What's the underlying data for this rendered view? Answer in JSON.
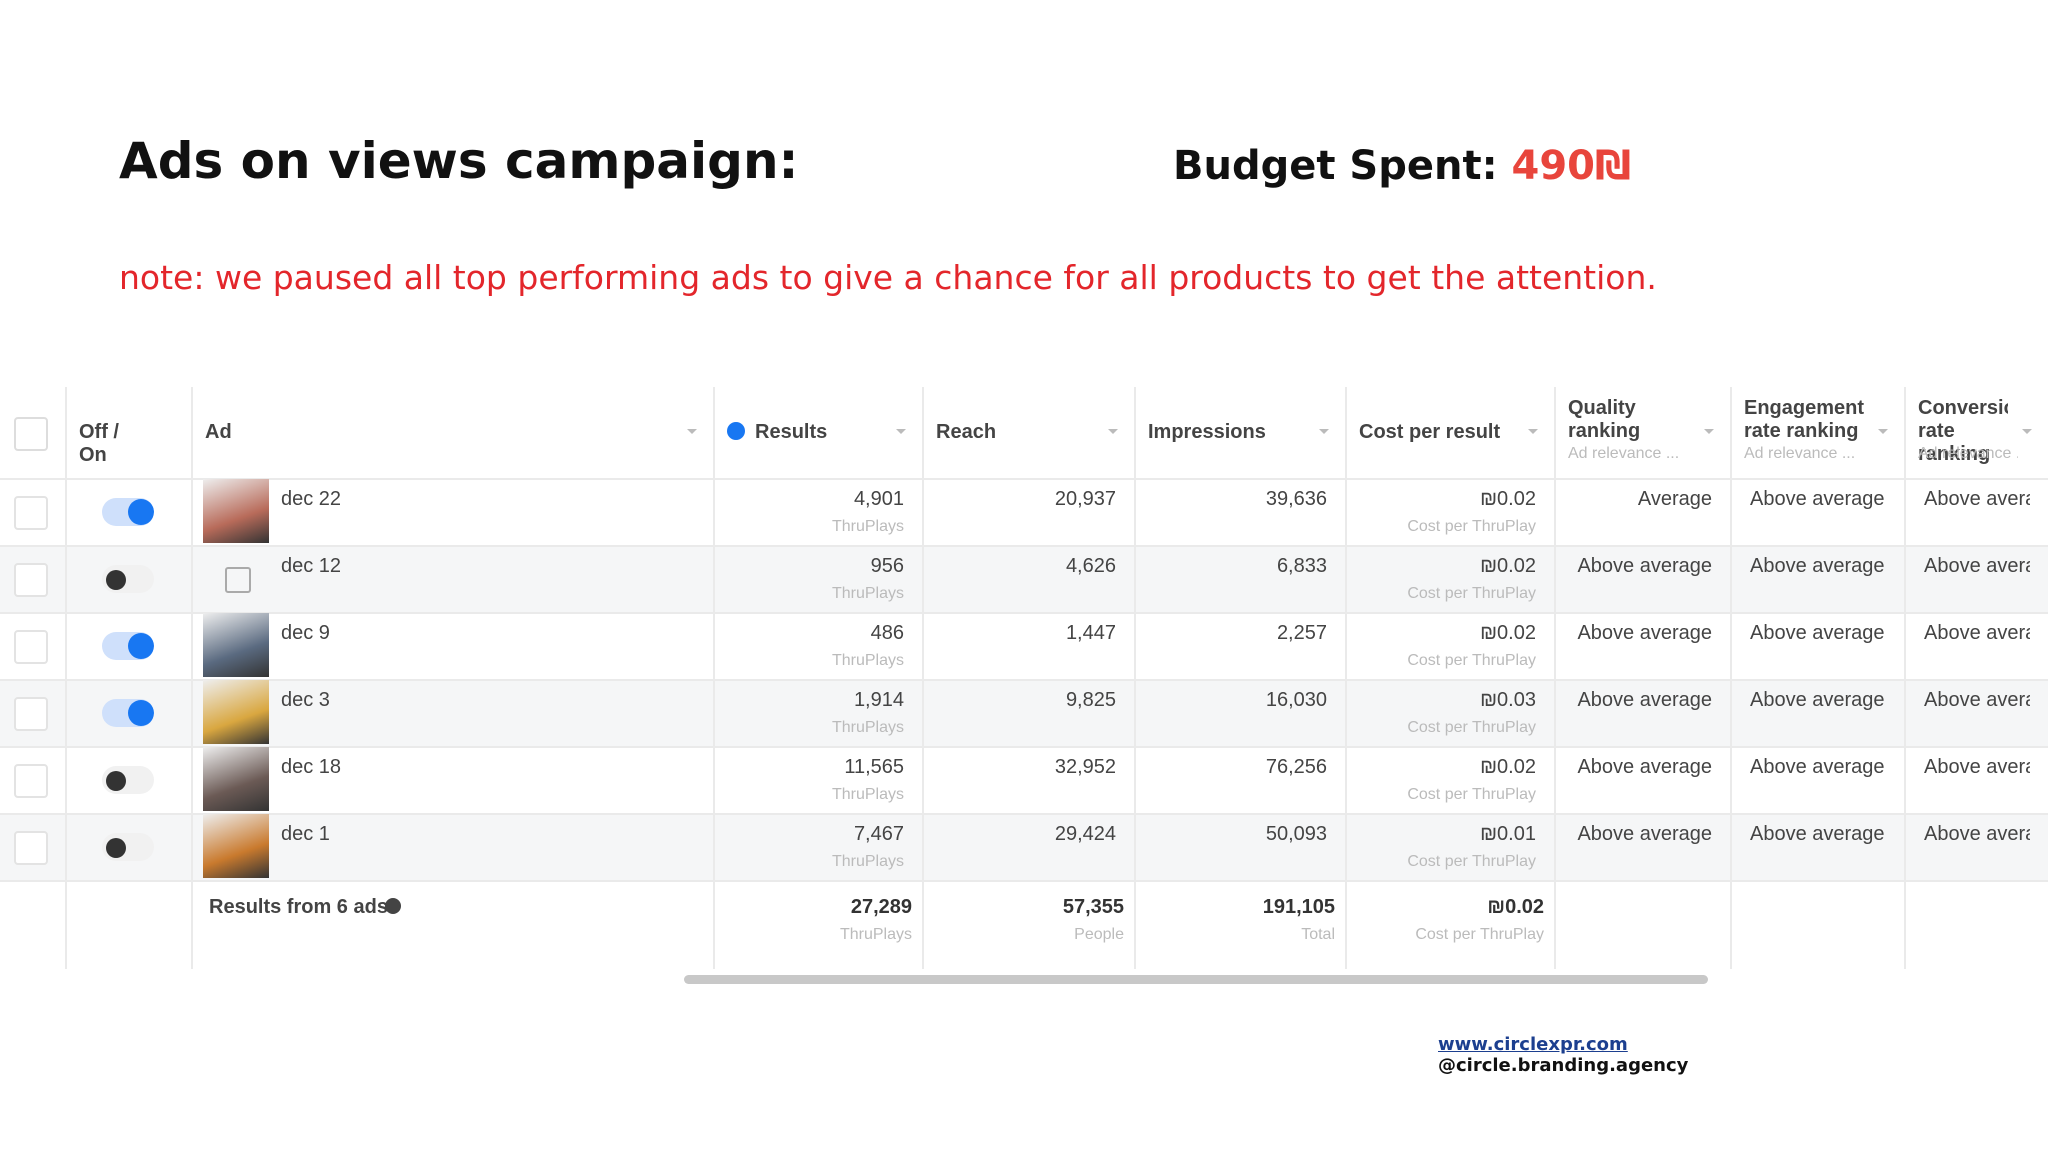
{
  "header": {
    "title": "Ads on views campaign:",
    "budget_label": "Budget Spent:",
    "budget_value": "490₪"
  },
  "note": "note: we paused all top performing ads to give a chance for all products to get the attention.",
  "table": {
    "columns": [
      {
        "key": "status",
        "label": "Off / On"
      },
      {
        "key": "ad",
        "label": "Ad"
      },
      {
        "key": "results",
        "label": "Results"
      },
      {
        "key": "reach",
        "label": "Reach"
      },
      {
        "key": "impressions",
        "label": "Impressions"
      },
      {
        "key": "cost",
        "label": "Cost per result"
      },
      {
        "key": "quality",
        "label": "Quality ranking",
        "sublabel": "Ad relevance ..."
      },
      {
        "key": "engagement",
        "label": "Engagement rate ranking",
        "sublabel": "Ad relevance ..."
      },
      {
        "key": "conversion",
        "label": "Conversion rate ranking",
        "sublabel": "Ad relevance ..."
      }
    ],
    "rows": [
      {
        "status": "on",
        "thumbnail": true,
        "ad": "dec 22",
        "results": "4,901",
        "results_unit": "ThruPlays",
        "reach": "20,937",
        "impressions": "39,636",
        "cost": "₪0.02",
        "cost_unit": "Cost per ThruPlay",
        "quality": "Average",
        "engagement": "Above average",
        "conversion": "Above average"
      },
      {
        "status": "off",
        "thumbnail": false,
        "ad": "dec 12",
        "results": "956",
        "results_unit": "ThruPlays",
        "reach": "4,626",
        "impressions": "6,833",
        "cost": "₪0.02",
        "cost_unit": "Cost per ThruPlay",
        "quality": "Above average",
        "engagement": "Above average",
        "conversion": "Above average"
      },
      {
        "status": "on",
        "thumbnail": true,
        "ad": "dec 9",
        "results": "486",
        "results_unit": "ThruPlays",
        "reach": "1,447",
        "impressions": "2,257",
        "cost": "₪0.02",
        "cost_unit": "Cost per ThruPlay",
        "quality": "Above average",
        "engagement": "Above average",
        "conversion": "Above average"
      },
      {
        "status": "on",
        "thumbnail": true,
        "ad": "dec 3",
        "results": "1,914",
        "results_unit": "ThruPlays",
        "reach": "9,825",
        "impressions": "16,030",
        "cost": "₪0.03",
        "cost_unit": "Cost per ThruPlay",
        "quality": "Above average",
        "engagement": "Above average",
        "conversion": "Above average"
      },
      {
        "status": "off",
        "thumbnail": true,
        "ad": "dec 18",
        "results": "11,565",
        "results_unit": "ThruPlays",
        "reach": "32,952",
        "impressions": "76,256",
        "cost": "₪0.02",
        "cost_unit": "Cost per ThruPlay",
        "quality": "Above average",
        "engagement": "Above average",
        "conversion": "Above average"
      },
      {
        "status": "off",
        "thumbnail": true,
        "ad": "dec 1",
        "results": "7,467",
        "results_unit": "ThruPlays",
        "reach": "29,424",
        "impressions": "50,093",
        "cost": "₪0.01",
        "cost_unit": "Cost per ThruPlay",
        "quality": "Above average",
        "engagement": "Above average",
        "conversion": "Above average"
      }
    ],
    "footer": {
      "label": "Results from 6 ads",
      "results": "27,289",
      "results_unit": "ThruPlays",
      "reach": "57,355",
      "reach_unit": "People",
      "impressions": "191,105",
      "impressions_unit": "Total",
      "cost": "₪0.02",
      "cost_unit": "Cost per ThruPlay"
    }
  },
  "links": {
    "website": "www.circlexpr.com",
    "handle": "@circle.branding.agency"
  }
}
